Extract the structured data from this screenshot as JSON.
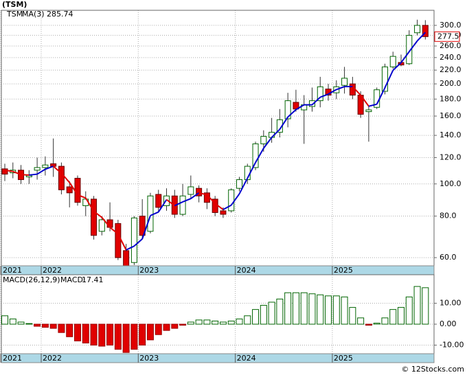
{
  "chart_data": [
    {
      "type": "candlestick",
      "title": "(TSM)",
      "symbol": "TSM",
      "categories": [
        "2021",
        null,
        null,
        null,
        null,
        "2022",
        null,
        null,
        null,
        null,
        null,
        null,
        null,
        null,
        null,
        null,
        null,
        "2023",
        null,
        null,
        null,
        null,
        null,
        null,
        null,
        null,
        null,
        null,
        null,
        "2024",
        null,
        null,
        null,
        null,
        null,
        null,
        null,
        null,
        null,
        null,
        null,
        "2025",
        null,
        null,
        null,
        null,
        null,
        null,
        null,
        null,
        null,
        null,
        null
      ],
      "open": [
        111,
        108,
        110,
        105,
        110,
        112,
        115,
        113,
        98,
        104,
        86,
        90,
        72,
        78,
        76,
        63,
        58,
        80,
        72,
        93,
        86,
        92,
        81,
        93,
        97,
        94,
        90,
        83,
        83,
        97,
        103,
        112,
        132,
        138,
        143,
        157,
        176,
        167,
        171,
        178,
        193,
        188,
        198,
        200,
        185,
        165,
        170,
        190,
        225,
        232,
        230,
        285,
        300
      ],
      "high": [
        115,
        116,
        114,
        110,
        120,
        121,
        137,
        116,
        102,
        106,
        95,
        92,
        80,
        88,
        78,
        66,
        80,
        90,
        94,
        96,
        97,
        96,
        100,
        106,
        99,
        97,
        92,
        85,
        97,
        105,
        115,
        134,
        145,
        158,
        168,
        188,
        192,
        185,
        195,
        210,
        200,
        205,
        225,
        210,
        190,
        172,
        195,
        230,
        250,
        245,
        290,
        312,
        311
      ],
      "low": [
        102,
        104,
        100,
        100,
        103,
        106,
        105,
        93,
        85,
        86,
        80,
        68,
        70,
        72,
        59,
        56,
        57,
        68,
        71,
        82,
        83,
        79,
        80,
        90,
        88,
        84,
        80,
        79,
        82,
        95,
        100,
        110,
        125,
        133,
        138,
        148,
        165,
        132,
        165,
        170,
        178,
        180,
        187,
        180,
        158,
        134,
        168,
        186,
        222,
        226,
        228,
        280,
        272
      ],
      "close": [
        107,
        110,
        103,
        106,
        112,
        114,
        113,
        96,
        94,
        88,
        90,
        70,
        78,
        74,
        60,
        56,
        79,
        70,
        92,
        85,
        92,
        81,
        92,
        98,
        92,
        88,
        82,
        81,
        96,
        103,
        113,
        132,
        139,
        143,
        156,
        178,
        168,
        173,
        178,
        196,
        185,
        196,
        208,
        185,
        162,
        167,
        192,
        225,
        242,
        228,
        280,
        300,
        277.5
      ],
      "up_color": "#006400",
      "down_color": "#e00000",
      "ma_name": "MA(3)",
      "ma": [
        110,
        109,
        106.7,
        106.3,
        107,
        110.7,
        113,
        107.7,
        101,
        92.7,
        90.7,
        82.7,
        79.3,
        74,
        70.7,
        63.3,
        65,
        68.3,
        80.3,
        82.3,
        89.7,
        86,
        88.3,
        90.3,
        94,
        92.7,
        87.3,
        83.7,
        86.3,
        93.3,
        104,
        116,
        128,
        138,
        146,
        159,
        167.3,
        173,
        173,
        182.3,
        186.3,
        192.3,
        196.3,
        196.3,
        185,
        171.3,
        173.7,
        194.7,
        219.7,
        231.7,
        250,
        269.3,
        285.74
      ],
      "ma_up_color": "#0000cc",
      "ma_down_color": "#e00000",
      "log_scale": true,
      "grid": true,
      "ylim": [
        56.7,
        333
      ],
      "yticks": [
        {
          "value": 60,
          "label": "60.0"
        },
        {
          "value": 80,
          "label": "80.0"
        },
        {
          "value": 100,
          "label": "100.0"
        },
        {
          "value": 120,
          "label": "120.0"
        },
        {
          "value": 140,
          "label": "140.0"
        },
        {
          "value": 160,
          "label": "160.0"
        },
        {
          "value": 180,
          "label": "180.0"
        },
        {
          "value": 200,
          "label": "200.0"
        },
        {
          "value": 220,
          "label": "220.0"
        },
        {
          "value": 240,
          "label": "240.0"
        },
        {
          "value": 260,
          "label": "260.0"
        },
        {
          "value": 280,
          "label": "280.0"
        },
        {
          "value": 300,
          "label": "300.0"
        }
      ]
    },
    {
      "type": "bar",
      "title": "MACD(26,12,9)",
      "value_prefix": "MACD:",
      "categories": [
        "2021",
        null,
        null,
        null,
        null,
        "2022",
        null,
        null,
        null,
        null,
        null,
        null,
        null,
        null,
        null,
        null,
        null,
        "2023",
        null,
        null,
        null,
        null,
        null,
        null,
        null,
        null,
        null,
        null,
        null,
        "2024",
        null,
        null,
        null,
        null,
        null,
        null,
        null,
        null,
        null,
        null,
        null,
        "2025",
        null,
        null,
        null,
        null,
        null,
        null,
        null,
        null,
        null,
        null,
        null
      ],
      "values": [
        4,
        2.5,
        1,
        0.3,
        -1,
        -1.5,
        -2,
        -4,
        -6,
        -8,
        -9,
        -10,
        -10.5,
        -10,
        -12,
        -13.5,
        -12,
        -10,
        -7.5,
        -5,
        -3,
        -2,
        -0.5,
        1,
        2,
        2,
        1.5,
        1,
        1.5,
        2.5,
        4,
        7,
        9,
        10.5,
        12,
        15,
        15,
        15,
        14.5,
        14,
        13.5,
        13.5,
        13,
        8,
        3,
        -0.5,
        0.5,
        3,
        7,
        8,
        13,
        18,
        17.41
      ],
      "up_color": "#006400",
      "down_color": "#e00000",
      "grid": true,
      "ylim": [
        -14.1,
        23.6
      ],
      "yticks": [
        {
          "value": -10,
          "label": "-10.00"
        },
        {
          "value": 0,
          "label": "0.00"
        },
        {
          "value": 10,
          "label": "10.00"
        }
      ]
    },
    {
      "type": "footer",
      "text": "© 12Stocks.com"
    }
  ]
}
